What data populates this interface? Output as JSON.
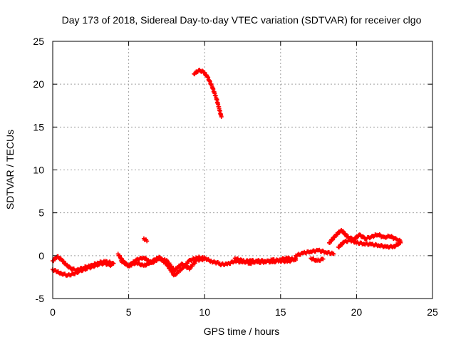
{
  "chart_data": {
    "type": "scatter",
    "title": "Day 173 of 2018, Sidereal Day-to-day VTEC variation (SDTVAR) for receiver clgo",
    "xlabel": "GPS time / hours",
    "ylabel": "SDTVAR / TECUs",
    "xlim": [
      0,
      25
    ],
    "ylim": [
      -5,
      25
    ],
    "xticks": [
      0,
      5,
      10,
      15,
      20,
      25
    ],
    "yticks": [
      -5,
      0,
      5,
      10,
      15,
      20,
      25
    ],
    "grid": true,
    "marker": "plus",
    "series": [
      {
        "name": "SDTVAR",
        "color": "#ff0000",
        "segments": [
          {
            "x": [
              0.0,
              0.3,
              0.6,
              1.0,
              1.4,
              1.8,
              2.2,
              2.6,
              3.0,
              3.4,
              3.8,
              4.0
            ],
            "y": [
              -1.6,
              -1.9,
              -2.1,
              -2.3,
              -2.1,
              -1.8,
              -1.5,
              -1.3,
              -1.0,
              -0.9,
              -1.1,
              -0.9
            ]
          },
          {
            "x": [
              0.0,
              0.3,
              0.6,
              0.9,
              1.2,
              1.6,
              2.0,
              2.5,
              3.0,
              3.5,
              4.0
            ],
            "y": [
              -0.6,
              -0.1,
              -0.5,
              -1.1,
              -1.5,
              -1.7,
              -1.4,
              -1.2,
              -0.8,
              -0.7,
              -0.9
            ]
          },
          {
            "x": [
              4.3,
              4.6,
              5.0,
              5.5,
              6.0,
              6.5,
              7.0,
              7.5,
              8.0,
              8.5,
              9.0,
              9.5,
              10.0
            ],
            "y": [
              0.2,
              -0.6,
              -1.2,
              -0.5,
              -0.2,
              -0.9,
              -0.3,
              -0.6,
              -1.7,
              -1.0,
              -1.5,
              -0.5,
              -0.4
            ]
          },
          {
            "x": [
              4.5,
              5.0,
              5.5,
              6.0,
              6.5,
              7.0,
              7.5,
              8.0,
              8.5,
              9.0,
              9.5,
              10.0,
              10.5,
              11.0
            ],
            "y": [
              -0.6,
              -1.2,
              -0.8,
              -1.2,
              -0.7,
              -0.2,
              -1.0,
              -2.3,
              -1.5,
              -0.6,
              -0.2,
              -0.3,
              -0.7,
              -0.9
            ]
          },
          {
            "x": [
              6.0,
              6.2
            ],
            "y": [
              2.0,
              1.7
            ]
          },
          {
            "x": [
              9.3,
              9.6,
              9.9,
              10.2,
              10.5,
              10.8,
              11.1
            ],
            "y": [
              21.2,
              21.6,
              21.5,
              20.8,
              19.7,
              18.2,
              16.2
            ]
          },
          {
            "x": [
              11.0,
              11.5,
              12.0,
              12.5,
              13.0,
              13.5,
              14.0,
              14.5,
              15.0,
              15.5,
              16.0
            ],
            "y": [
              -1.0,
              -1.0,
              -0.6,
              -0.8,
              -0.5,
              -0.8,
              -0.7,
              -0.5,
              -0.6,
              -0.7,
              -0.3
            ]
          },
          {
            "x": [
              12.0,
              12.5,
              13.0,
              13.5,
              14.0,
              14.5,
              15.0,
              15.5,
              16.0
            ],
            "y": [
              -0.3,
              -0.6,
              -0.9,
              -0.6,
              -0.6,
              -0.8,
              -0.4,
              -0.3,
              -0.5
            ]
          },
          {
            "x": [
              16.0,
              16.5,
              17.0,
              17.5,
              18.0,
              18.5
            ],
            "y": [
              0.0,
              0.3,
              0.5,
              0.6,
              0.4,
              0.2
            ]
          },
          {
            "x": [
              17.0,
              17.4,
              17.8
            ],
            "y": [
              -0.3,
              -0.6,
              -0.4
            ]
          },
          {
            "x": [
              18.2,
              18.6,
              19.0,
              19.4,
              19.8,
              20.2,
              20.6,
              21.0,
              21.4,
              21.8,
              22.2,
              22.6,
              22.9
            ],
            "y": [
              1.5,
              2.3,
              3.0,
              2.2,
              1.9,
              2.4,
              2.0,
              2.2,
              2.5,
              2.1,
              2.3,
              1.9,
              1.7
            ]
          },
          {
            "x": [
              18.8,
              19.2,
              19.6,
              20.0,
              20.5,
              21.0,
              21.5,
              22.0,
              22.5,
              22.9
            ],
            "y": [
              1.0,
              1.6,
              1.8,
              1.5,
              1.4,
              1.3,
              1.2,
              1.0,
              1.1,
              1.5
            ]
          }
        ]
      }
    ]
  }
}
